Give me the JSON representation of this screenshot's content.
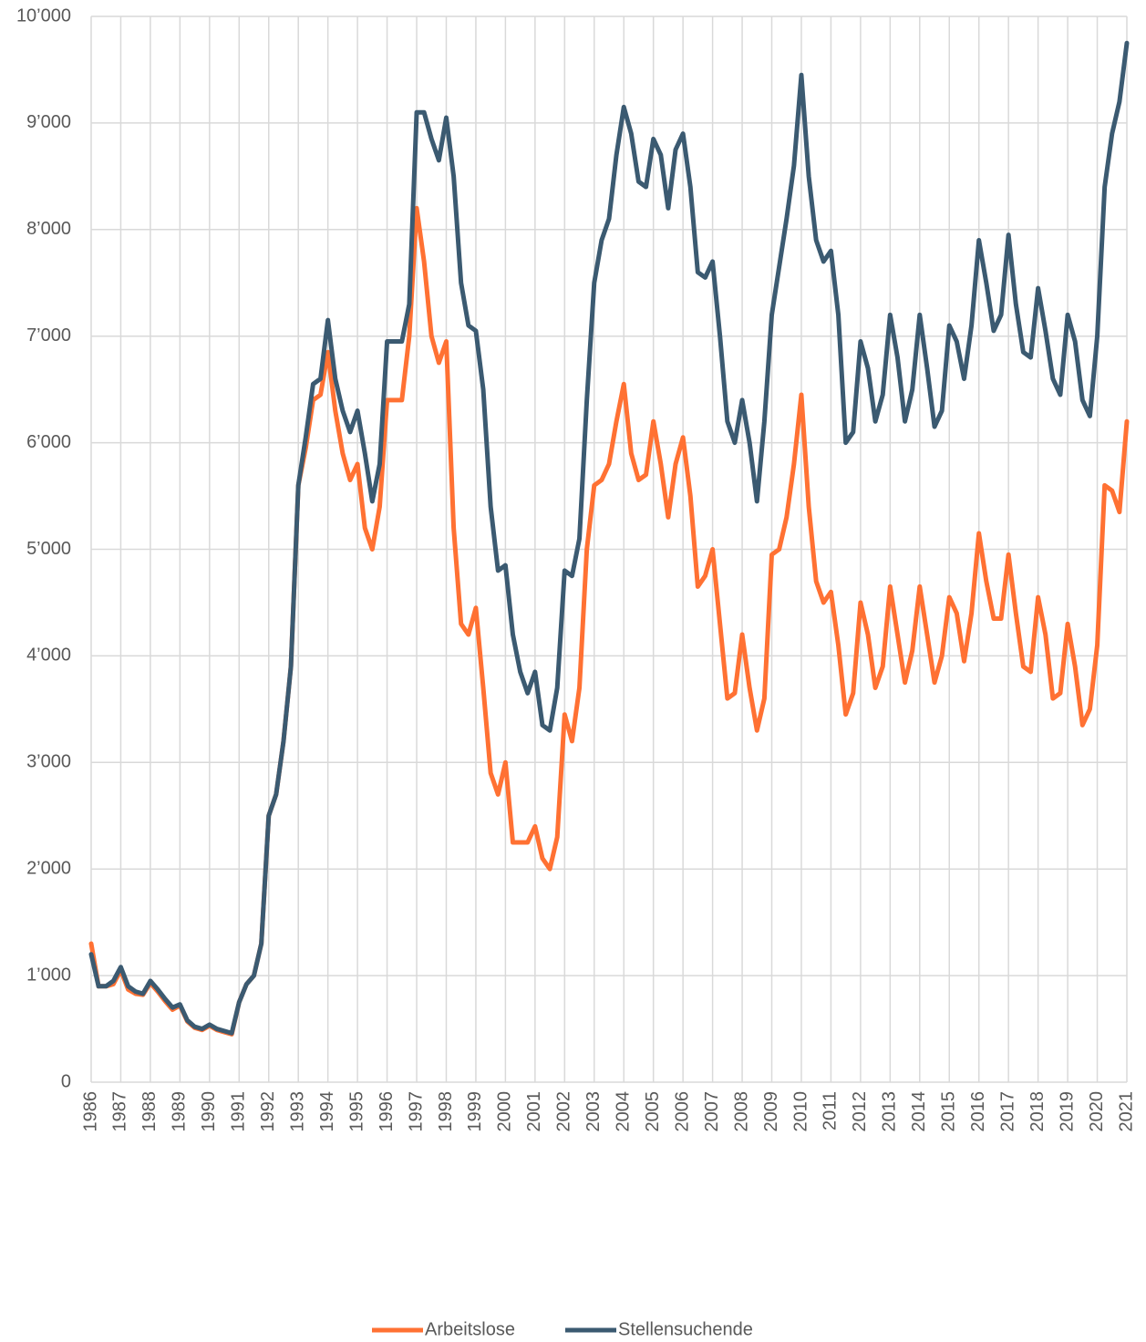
{
  "chart_data": {
    "type": "line",
    "x": [
      1986,
      1986.25,
      1986.5,
      1986.75,
      1987,
      1987.25,
      1987.5,
      1987.75,
      1988,
      1988.25,
      1988.5,
      1988.75,
      1989,
      1989.25,
      1989.5,
      1989.75,
      1990,
      1990.25,
      1990.5,
      1990.75,
      1991,
      1991.25,
      1991.5,
      1991.75,
      1992,
      1992.25,
      1992.5,
      1992.75,
      1993,
      1993.25,
      1993.5,
      1993.75,
      1994,
      1994.25,
      1994.5,
      1994.75,
      1995,
      1995.25,
      1995.5,
      1995.75,
      1996,
      1996.25,
      1996.5,
      1996.75,
      1997,
      1997.25,
      1997.5,
      1997.75,
      1998,
      1998.25,
      1998.5,
      1998.75,
      1999,
      1999.25,
      1999.5,
      1999.75,
      2000,
      2000.25,
      2000.5,
      2000.75,
      2001,
      2001.25,
      2001.5,
      2001.75,
      2002,
      2002.25,
      2002.5,
      2002.75,
      2003,
      2003.25,
      2003.5,
      2003.75,
      2004,
      2004.25,
      2004.5,
      2004.75,
      2005,
      2005.25,
      2005.5,
      2005.75,
      2006,
      2006.25,
      2006.5,
      2006.75,
      2007,
      2007.25,
      2007.5,
      2007.75,
      2008,
      2008.25,
      2008.5,
      2008.75,
      2009,
      2009.25,
      2009.5,
      2009.75,
      2010,
      2010.25,
      2010.5,
      2010.75,
      2011,
      2011.25,
      2011.5,
      2011.75,
      2012,
      2012.25,
      2012.5,
      2012.75,
      2013,
      2013.25,
      2013.5,
      2013.75,
      2014,
      2014.25,
      2014.5,
      2014.75,
      2015,
      2015.25,
      2015.5,
      2015.75,
      2016,
      2016.25,
      2016.5,
      2016.75,
      2017,
      2017.25,
      2017.5,
      2017.75,
      2018,
      2018.25,
      2018.5,
      2018.75,
      2019,
      2019.25,
      2019.5,
      2019.75,
      2020,
      2020.25,
      2020.5,
      2020.75,
      2021
    ],
    "series": [
      {
        "name": "Arbeitslose",
        "color": "#ff7133",
        "values": [
          1300,
          900,
          900,
          920,
          1050,
          870,
          830,
          820,
          930,
          850,
          760,
          680,
          720,
          570,
          510,
          490,
          530,
          490,
          470,
          450,
          750,
          920,
          1000,
          1300,
          2500,
          2700,
          3200,
          3900,
          5600,
          5950,
          6400,
          6450,
          6850,
          6300,
          5900,
          5650,
          5800,
          5200,
          5000,
          5400,
          6400,
          6400,
          6400,
          7000,
          8200,
          7700,
          7000,
          6750,
          6950,
          5200,
          4300,
          4200,
          4450,
          3700,
          2900,
          2700,
          3000,
          2250,
          2250,
          2250,
          2400,
          2100,
          2000,
          2300,
          3450,
          3200,
          3700,
          5000,
          5600,
          5650,
          5800,
          6200,
          6550,
          5900,
          5650,
          5700,
          6200,
          5800,
          5300,
          5800,
          6050,
          5500,
          4650,
          4750,
          5000,
          4300,
          3600,
          3650,
          4200,
          3700,
          3300,
          3600,
          4950,
          5000,
          5300,
          5800,
          6450,
          5400,
          4700,
          4500,
          4600,
          4100,
          3450,
          3650,
          4500,
          4200,
          3700,
          3900,
          4650,
          4200,
          3750,
          4050,
          4650,
          4200,
          3750,
          4000,
          4550,
          4400,
          3950,
          4400,
          5150,
          4700,
          4350,
          4350,
          4950,
          4400,
          3900,
          3850,
          4550,
          4200,
          3600,
          3650,
          4300,
          3900,
          3350,
          3500,
          4100,
          5600,
          5550,
          5350,
          6200
        ]
      },
      {
        "name": "Stellensuchende",
        "color": "#3b5a71",
        "values": [
          1200,
          900,
          900,
          950,
          1080,
          900,
          850,
          830,
          950,
          870,
          780,
          700,
          730,
          580,
          520,
          500,
          540,
          500,
          480,
          460,
          750,
          920,
          1000,
          1300,
          2500,
          2700,
          3200,
          3900,
          5600,
          6050,
          6550,
          6600,
          7150,
          6600,
          6300,
          6100,
          6300,
          5900,
          5450,
          5800,
          6950,
          6950,
          6950,
          7300,
          9100,
          9100,
          8850,
          8650,
          9050,
          8500,
          7500,
          7100,
          7050,
          6500,
          5400,
          4800,
          4850,
          4200,
          3850,
          3650,
          3850,
          3350,
          3300,
          3700,
          4800,
          4750,
          5100,
          6400,
          7500,
          7900,
          8100,
          8700,
          9150,
          8900,
          8450,
          8400,
          8850,
          8700,
          8200,
          8750,
          8900,
          8400,
          7600,
          7550,
          7700,
          7000,
          6200,
          6000,
          6400,
          6000,
          5450,
          6200,
          7200,
          7650,
          8100,
          8600,
          9450,
          8500,
          7900,
          7700,
          7800,
          7200,
          6000,
          6100,
          6950,
          6700,
          6200,
          6450,
          7200,
          6800,
          6200,
          6500,
          7200,
          6700,
          6150,
          6300,
          7100,
          6950,
          6600,
          7100,
          7900,
          7500,
          7050,
          7200,
          7950,
          7300,
          6850,
          6800,
          7450,
          7050,
          6600,
          6450,
          7200,
          6950,
          6400,
          6250,
          7000,
          8400,
          8900,
          9200,
          9750
        ]
      }
    ],
    "xlim": [
      1986,
      2021
    ],
    "xticks": [
      1986,
      1987,
      1988,
      1989,
      1990,
      1991,
      1992,
      1993,
      1994,
      1995,
      1996,
      1997,
      1998,
      1999,
      2000,
      2001,
      2002,
      2003,
      2004,
      2005,
      2006,
      2007,
      2008,
      2009,
      2010,
      2011,
      2012,
      2013,
      2014,
      2015,
      2016,
      2017,
      2018,
      2019,
      2020,
      2021
    ],
    "ylim": [
      0,
      10000
    ],
    "yticks": [
      0,
      {
        "value": 1000,
        "label": "1’000"
      },
      {
        "value": 2000,
        "label": "2’000"
      },
      {
        "value": 3000,
        "label": "3’000"
      },
      {
        "value": 4000,
        "label": "4’000"
      },
      {
        "value": 5000,
        "label": "5’000"
      },
      {
        "value": 6000,
        "label": "6’000"
      },
      {
        "value": 7000,
        "label": "7’000"
      },
      {
        "value": 8000,
        "label": "8’000"
      },
      {
        "value": 9000,
        "label": "9’000"
      },
      {
        "value": 10000,
        "label": "10’000"
      }
    ],
    "grid": true,
    "legend": "bottom"
  }
}
